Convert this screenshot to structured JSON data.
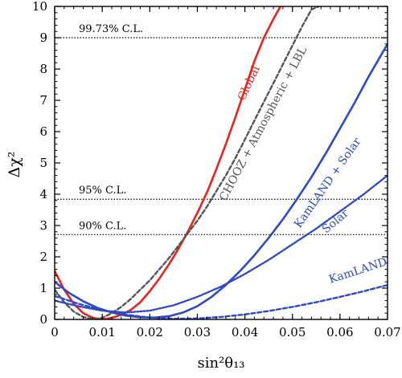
{
  "chart_data": {
    "type": "line",
    "title": "",
    "xlabel": "sin²θ₁₃",
    "ylabel": "Δχ²",
    "xlim": [
      0,
      0.07
    ],
    "ylim": [
      0,
      10
    ],
    "xticks": [
      0,
      0.01,
      0.02,
      0.03,
      0.04,
      0.05,
      0.06,
      0.07
    ],
    "xtick_labels": [
      "0",
      "0.01",
      "0.02",
      "0.03",
      "0.04",
      "0.05",
      "0.06",
      "0.07"
    ],
    "yticks": [
      0,
      1,
      2,
      3,
      4,
      5,
      6,
      7,
      8,
      9,
      10
    ],
    "ytick_labels": [
      "0",
      "1",
      "2",
      "3",
      "4",
      "5",
      "6",
      "7",
      "8",
      "9",
      "10"
    ],
    "grid": false,
    "legend": "inline labels",
    "reference_lines": [
      {
        "label": "99.73% C.L.",
        "y": 9.0
      },
      {
        "label": "95% C.L.",
        "y": 3.84
      },
      {
        "label": "90% C.L.",
        "y": 2.71
      }
    ],
    "series": [
      {
        "name": "Global",
        "color": "#e8231d",
        "style": "solid",
        "label_rotation": -65,
        "label_at": [
          0.0415,
          7.5
        ],
        "x": [
          0,
          0.002,
          0.004,
          0.006,
          0.008,
          0.01,
          0.012,
          0.014,
          0.016,
          0.018,
          0.02,
          0.022,
          0.024,
          0.026,
          0.028,
          0.03,
          0.032,
          0.034,
          0.036,
          0.038,
          0.04,
          0.042,
          0.044,
          0.046,
          0.0475
        ],
        "y": [
          1.55,
          0.95,
          0.5,
          0.2,
          0.05,
          0.0,
          0.05,
          0.15,
          0.3,
          0.55,
          0.9,
          1.3,
          1.75,
          2.25,
          2.8,
          3.4,
          4.05,
          4.8,
          5.6,
          6.45,
          7.35,
          8.25,
          9.0,
          9.6,
          10.0
        ]
      },
      {
        "name": "CHOOZ + Atmospheric + LBL",
        "color": "#555555",
        "style": "dashed",
        "label_rotation": -62,
        "label_at": [
          0.0445,
          6.2
        ],
        "x": [
          0,
          0.002,
          0.004,
          0.006,
          0.008,
          0.01,
          0.012,
          0.014,
          0.016,
          0.018,
          0.02,
          0.022,
          0.024,
          0.026,
          0.028,
          0.03,
          0.032,
          0.034,
          0.036,
          0.038,
          0.04,
          0.042,
          0.044,
          0.046,
          0.048,
          0.05,
          0.052,
          0.054,
          0.0555
        ],
        "y": [
          0.95,
          0.55,
          0.25,
          0.08,
          0.0,
          0.05,
          0.2,
          0.4,
          0.65,
          0.95,
          1.25,
          1.6,
          1.95,
          2.35,
          2.75,
          3.15,
          3.6,
          4.1,
          4.6,
          5.15,
          5.75,
          6.35,
          6.95,
          7.55,
          8.15,
          8.75,
          9.35,
          9.9,
          10.0
        ]
      },
      {
        "name": "KamLAND + Solar",
        "color": "#2e49c8",
        "style": "solid",
        "label_rotation": -55,
        "label_at": [
          0.058,
          4.3
        ],
        "x": [
          0,
          0.003,
          0.006,
          0.009,
          0.012,
          0.015,
          0.018,
          0.021,
          0.024,
          0.027,
          0.03,
          0.033,
          0.036,
          0.039,
          0.042,
          0.045,
          0.048,
          0.051,
          0.054,
          0.057,
          0.06,
          0.063,
          0.066,
          0.07
        ],
        "y": [
          1.2,
          0.85,
          0.58,
          0.37,
          0.22,
          0.12,
          0.07,
          0.06,
          0.1,
          0.22,
          0.42,
          0.72,
          1.1,
          1.55,
          2.05,
          2.6,
          3.2,
          3.85,
          4.55,
          5.3,
          6.1,
          6.9,
          7.75,
          8.8
        ]
      },
      {
        "name": "Solar",
        "color": "#2e49c8",
        "style": "dotted",
        "label_rotation": -40,
        "label_at": [
          0.0595,
          3.05
        ],
        "x": [
          0,
          0.005,
          0.01,
          0.015,
          0.02,
          0.025,
          0.03,
          0.035,
          0.04,
          0.045,
          0.05,
          0.055,
          0.06,
          0.065,
          0.07
        ],
        "y": [
          0.6,
          0.42,
          0.28,
          0.22,
          0.28,
          0.45,
          0.72,
          1.05,
          1.45,
          1.9,
          2.4,
          2.9,
          3.45,
          4.0,
          4.6
        ]
      },
      {
        "name": "KamLAND",
        "color": "#2e49c8",
        "style": "dashed",
        "label_rotation": -18,
        "label_at": [
          0.064,
          1.45
        ],
        "x": [
          0,
          0.005,
          0.01,
          0.015,
          0.02,
          0.025,
          0.03,
          0.035,
          0.04,
          0.045,
          0.05,
          0.055,
          0.06,
          0.065,
          0.07
        ],
        "y": [
          0.75,
          0.5,
          0.3,
          0.15,
          0.06,
          0.02,
          0.03,
          0.08,
          0.16,
          0.27,
          0.4,
          0.55,
          0.72,
          0.9,
          1.1
        ]
      }
    ]
  }
}
